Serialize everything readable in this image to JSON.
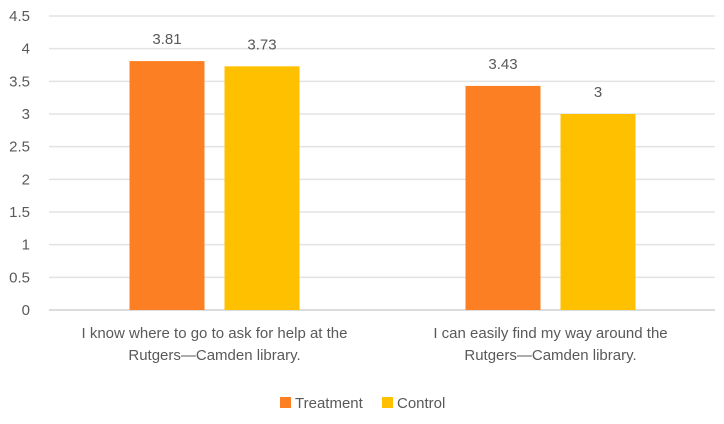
{
  "chart_data": {
    "type": "bar",
    "categories": [
      [
        "I know where to go to ask for help at the",
        "Rutgers—Camden library."
      ],
      [
        "I can easily find my way around the",
        "Rutgers—Camden library."
      ]
    ],
    "series": [
      {
        "name": "Treatment",
        "values": [
          3.81,
          3.43
        ],
        "color": "#FD7F23",
        "labels": [
          "3.81",
          "3.43"
        ]
      },
      {
        "name": "Control",
        "values": [
          3.73,
          3.0
        ],
        "color": "#FFC000",
        "labels": [
          "3.73",
          "3"
        ]
      }
    ],
    "ylim": [
      0,
      4.5
    ],
    "yticks": [
      "0",
      "0.5",
      "1",
      "1.5",
      "2",
      "2.5",
      "3",
      "3.5",
      "4",
      "4.5"
    ],
    "grid": true,
    "legend": "bottom",
    "title": "",
    "xlabel": "",
    "ylabel": ""
  }
}
